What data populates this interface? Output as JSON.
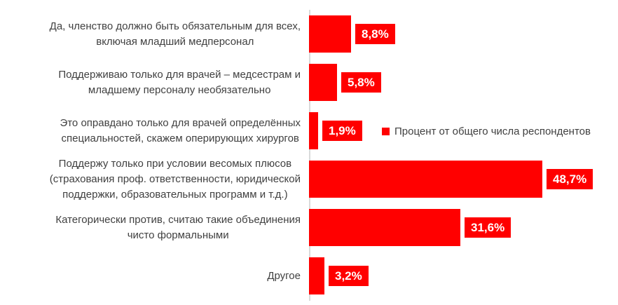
{
  "chart_data": {
    "type": "bar",
    "orientation": "horizontal",
    "title": "",
    "legend": "Процент от общего числа респондентов",
    "legend_position": "middle-right",
    "gridlines": false,
    "categories": [
      "Да, членство должно быть обязательным для всех,\nвключая младший медперсонал",
      "Поддерживаю только для врачей – медсестрам и\nмладшему персоналу необязательно",
      "Это оправдано только для врачей определённых\nспециальностей, скажем оперирующих хирургов",
      "Поддержу только при условии весомых плюсов\n(страхования проф. ответственности, юридической\nподдержки, образовательных программ и т.д.)",
      "Категорически против, считаю такие объединения\nчисто формальными",
      "Другое"
    ],
    "values": [
      8.8,
      5.8,
      1.9,
      48.7,
      31.6,
      3.2
    ],
    "value_labels": [
      "8,8%",
      "5,8%",
      "1,9%",
      "48,7%",
      "31,6%",
      "3,2%"
    ],
    "colors": {
      "bar": "#FF0000",
      "value_label_bg": "#FF0000",
      "value_label_text": "#FFFFFF",
      "category_text": "#404040",
      "legend_text": "#404040",
      "axis_line": "#D9D9D9",
      "background": "#FFFFFF"
    }
  }
}
